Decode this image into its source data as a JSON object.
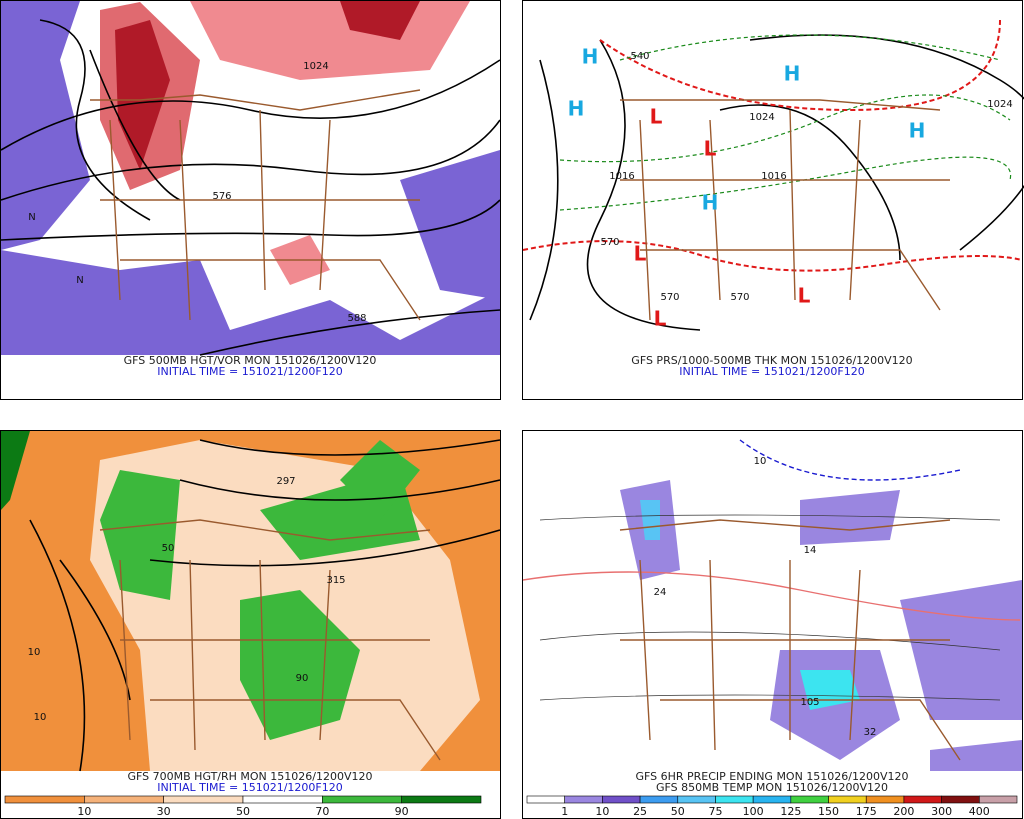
{
  "panels": [
    {
      "title": "GFS 500MB HGT/VOR MON 151026/1200V120",
      "subtitle": "INITIAL TIME = 151021/1200F120",
      "markers": [
        {
          "text": "576",
          "color": "#111"
        },
        {
          "text": "588",
          "color": "#111"
        },
        {
          "text": "1024",
          "color": "#111"
        },
        {
          "text": "N",
          "color": "#111"
        },
        {
          "text": "N",
          "color": "#111"
        }
      ]
    },
    {
      "title": "GFS PRS/1000-500MB THK MON 151026/1200V120",
      "subtitle": "INITIAL TIME = 151021/1200F120",
      "markers": [
        {
          "text": "H",
          "color": "#18a8e0"
        },
        {
          "text": "H",
          "color": "#18a8e0"
        },
        {
          "text": "H",
          "color": "#18a8e0"
        },
        {
          "text": "H",
          "color": "#18a8e0"
        },
        {
          "text": "H",
          "color": "#18a8e0"
        },
        {
          "text": "L",
          "color": "#e01818"
        },
        {
          "text": "L",
          "color": "#e01818"
        },
        {
          "text": "L",
          "color": "#e01818"
        },
        {
          "text": "L",
          "color": "#e01818"
        },
        {
          "text": "L",
          "color": "#e01818"
        },
        {
          "text": "1016",
          "color": "#111"
        },
        {
          "text": "1016",
          "color": "#111"
        },
        {
          "text": "1024",
          "color": "#111"
        },
        {
          "text": "1024",
          "color": "#111"
        },
        {
          "text": "540",
          "color": "#e01818"
        },
        {
          "text": "570",
          "color": "#e01818"
        },
        {
          "text": "570",
          "color": "#e01818"
        },
        {
          "text": "570",
          "color": "#e01818"
        }
      ]
    },
    {
      "title": "GFS 700MB HGT/RH MON 151026/1200V120",
      "subtitle": "INITIAL TIME = 151021/1200F120",
      "markers": [
        {
          "text": "297",
          "color": "#111"
        },
        {
          "text": "315",
          "color": "#111"
        },
        {
          "text": "50",
          "color": "#111"
        },
        {
          "text": "90",
          "color": "#111"
        },
        {
          "text": "10",
          "color": "#111"
        },
        {
          "text": "10",
          "color": "#111"
        }
      ],
      "colorbar": {
        "labels": [
          10,
          30,
          50,
          70,
          90
        ],
        "colors": [
          "#f0903c",
          "#f5b27a",
          "#fbdcc0",
          "#ffffff",
          "#3cb83c",
          "#0c7a14"
        ]
      }
    },
    {
      "title": "GFS 6HR PRECIP ENDING MON 151026/1200V120",
      "subtitle": "GFS 850MB TEMP MON 151026/1200V120",
      "markers": [
        {
          "text": "10",
          "color": "#1a1ad0"
        },
        {
          "text": "14",
          "color": "#111"
        },
        {
          "text": "24",
          "color": "#111"
        },
        {
          "text": "32",
          "color": "#111"
        },
        {
          "text": "105",
          "color": "#111"
        }
      ],
      "colorbar": {
        "labels": [
          1,
          10,
          25,
          50,
          75,
          100,
          125,
          150,
          175,
          200,
          300,
          400
        ],
        "colors": [
          "#ffffff",
          "#9a86e0",
          "#7050c8",
          "#3c9cf0",
          "#58c4f4",
          "#3ce4f0",
          "#28b4f0",
          "#40d040",
          "#f0d020",
          "#f09020",
          "#d01818",
          "#801010",
          "#c8a0a8"
        ]
      }
    }
  ]
}
